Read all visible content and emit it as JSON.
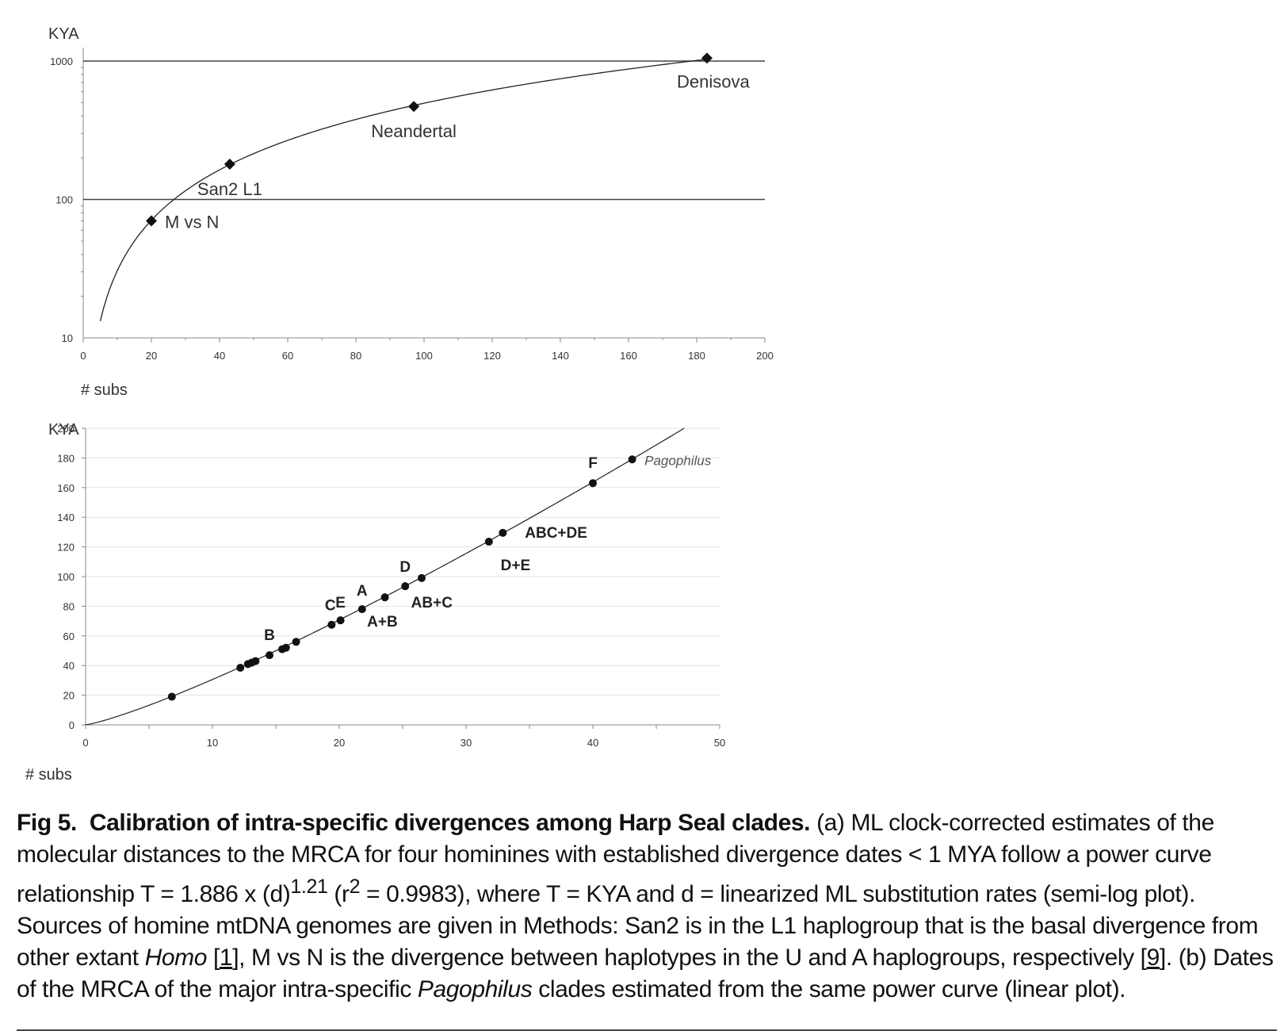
{
  "chart_data": [
    {
      "type": "scatter",
      "panel": "a",
      "ylabel": "KYA",
      "xlabel": "# subs",
      "yscale": "log",
      "xlim": [
        0,
        200
      ],
      "ylim": [
        10,
        1000
      ],
      "xticks": [
        "0",
        "20",
        "40",
        "60",
        "80",
        "100",
        "120",
        "140",
        "160",
        "180",
        "200"
      ],
      "yticks": [
        "10",
        "100",
        "1000"
      ],
      "reference_lines_y": [
        100,
        1000
      ],
      "curve": {
        "coefficient": 1.886,
        "exponent": 1.21,
        "x_from": 5,
        "x_to": 183
      },
      "points": [
        {
          "x": 20,
          "y": 70,
          "label": "M vs N"
        },
        {
          "x": 43,
          "y": 180,
          "label": "San2 L1"
        },
        {
          "x": 97,
          "y": 470,
          "label": "Neandertal"
        },
        {
          "x": 183,
          "y": 1050,
          "label": "Denisova"
        }
      ]
    },
    {
      "type": "scatter",
      "panel": "b",
      "ylabel": "KYA",
      "xlabel": "# subs",
      "xlim": [
        0,
        50
      ],
      "ylim": [
        0,
        200
      ],
      "xticks": [
        "0",
        "10",
        "20",
        "30",
        "40",
        "50"
      ],
      "yticks": [
        "0",
        "20",
        "40",
        "60",
        "80",
        "100",
        "120",
        "140",
        "160",
        "180",
        "200"
      ],
      "grid": true,
      "curve": {
        "coefficient": 1.886,
        "exponent": 1.21,
        "x_from": 0,
        "x_to": 47.2
      },
      "points": [
        {
          "x": 6.8,
          "y": 19
        },
        {
          "x": 12.2,
          "y": 38.5
        },
        {
          "x": 12.8,
          "y": 41
        },
        {
          "x": 13.1,
          "y": 42
        },
        {
          "x": 13.4,
          "y": 43
        },
        {
          "x": 14.5,
          "y": 47
        },
        {
          "x": 15.5,
          "y": 51
        },
        {
          "x": 15.8,
          "y": 52
        },
        {
          "x": 16.6,
          "y": 56
        },
        {
          "x": 19.4,
          "y": 67.5
        },
        {
          "x": 20.1,
          "y": 70.5
        },
        {
          "x": 21.8,
          "y": 78
        },
        {
          "x": 23.6,
          "y": 86
        },
        {
          "x": 25.2,
          "y": 93.5
        },
        {
          "x": 26.5,
          "y": 99
        },
        {
          "x": 31.8,
          "y": 123.5
        },
        {
          "x": 32.9,
          "y": 129.5
        },
        {
          "x": 40,
          "y": 163
        },
        {
          "x": 43.1,
          "y": 179
        }
      ],
      "annotations": [
        {
          "text": "B",
          "x": 14.5,
          "y": 61
        },
        {
          "text": "C",
          "x": 19.3,
          "y": 81
        },
        {
          "text": "E",
          "x": 20.1,
          "y": 83
        },
        {
          "text": "A",
          "x": 21.8,
          "y": 91
        },
        {
          "text": "A+B",
          "x": 23.4,
          "y": 70
        },
        {
          "text": "D",
          "x": 25.2,
          "y": 107
        },
        {
          "text": "AB+C",
          "x": 27.3,
          "y": 83
        },
        {
          "text": "D+E",
          "x": 33.9,
          "y": 108
        },
        {
          "text": "ABC+DE",
          "x": 37.1,
          "y": 130
        },
        {
          "text": "F",
          "x": 40,
          "y": 177
        },
        {
          "text": "Pagophilus",
          "x": 46.7,
          "y": 179
        }
      ]
    }
  ],
  "caption": {
    "fig_number": "Fig 5.",
    "title": "Calibration of intra-specific divergences among Harp Seal clades.",
    "p1": "(a) ML clock-corrected estimates of the molecular distances to the MRCA for four hominines with established divergence dates < 1 MYA follow a power curve relationship T = 1.886 x (d)",
    "sup1": "1.21",
    "p2": " (r",
    "sup2": "2",
    "p3": " = 0.9983), where T = KYA and d = linearized ML substitution rates (semi-log plot). Sources of homine mtDNA genomes are given in Methods: San2 is in the L1 haplogroup that is the basal divergence from other extant ",
    "homo": "Homo",
    "p4": " [",
    "ref1": "1",
    "p5": "], M vs N is the divergence between haplotypes in the U and A haplogroups, respectively [",
    "ref2": "9",
    "p6": "]. (b) Dates of the MRCA of the major intra-specific ",
    "pagophilus": "Pagophilus",
    "p7": " clades estimated from the same power curve (linear plot)."
  }
}
